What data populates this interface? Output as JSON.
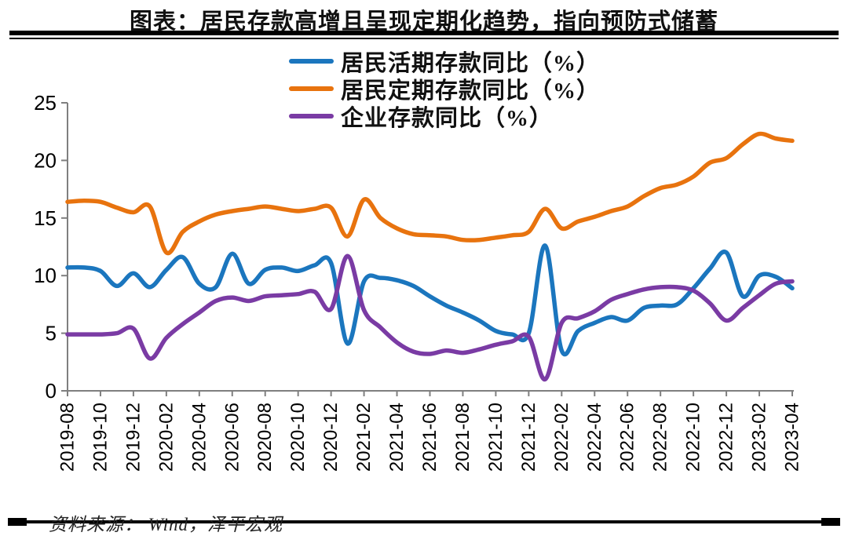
{
  "title": "图表：居民存款高增且呈现定期化趋势，指向预防式储蓄",
  "source_note": "资料来源： Wind，泽平宏观",
  "colors": {
    "blue_series": "#1B76BE",
    "orange_series": "#E8730E",
    "purple_series": "#7A3BA4",
    "axis": "#7F7F7F",
    "text": "#000000",
    "rule": "#000000"
  },
  "chart_data": {
    "type": "line",
    "title": "图表：居民存款高增且呈现定期化趋势，指向预防式储蓄",
    "xlabel": "",
    "ylabel": "",
    "ylim": [
      0,
      25
    ],
    "y_ticks": [
      0,
      5,
      10,
      15,
      20,
      25
    ],
    "grid": false,
    "legend_position": "top-center",
    "x": [
      "2019-08",
      "2019-09",
      "2019-10",
      "2019-11",
      "2019-12",
      "2020-01",
      "2020-02",
      "2020-03",
      "2020-04",
      "2020-05",
      "2020-06",
      "2020-07",
      "2020-08",
      "2020-09",
      "2020-10",
      "2020-11",
      "2020-12",
      "2021-01",
      "2021-02",
      "2021-03",
      "2021-04",
      "2021-05",
      "2021-06",
      "2021-07",
      "2021-08",
      "2021-09",
      "2021-10",
      "2021-11",
      "2021-12",
      "2022-01",
      "2022-02",
      "2022-03",
      "2022-04",
      "2022-05",
      "2022-06",
      "2022-07",
      "2022-08",
      "2022-09",
      "2022-10",
      "2022-11",
      "2022-12",
      "2023-01",
      "2023-02",
      "2023-03",
      "2023-04"
    ],
    "x_tick_labels": [
      "2019-08",
      "2019-10",
      "2019-12",
      "2020-02",
      "2020-04",
      "2020-06",
      "2020-08",
      "2020-10",
      "2020-12",
      "2021-02",
      "2021-04",
      "2021-06",
      "2021-08",
      "2021-10",
      "2021-12",
      "2022-02",
      "2022-04",
      "2022-06",
      "2022-08",
      "2022-10",
      "2022-12",
      "2023-02",
      "2023-04"
    ],
    "series": [
      {
        "name": "居民活期存款同比（%）",
        "color": "#1B76BE",
        "values": [
          10.7,
          10.7,
          10.4,
          9.1,
          10.2,
          9.0,
          10.5,
          11.6,
          9.3,
          9.0,
          11.9,
          9.3,
          10.5,
          10.7,
          10.4,
          10.9,
          11.1,
          4.1,
          9.5,
          9.8,
          9.6,
          9.1,
          8.2,
          7.4,
          6.8,
          6.1,
          5.2,
          4.9,
          5.0,
          12.6,
          3.5,
          5.2,
          5.9,
          6.4,
          6.1,
          7.2,
          7.4,
          7.5,
          8.9,
          10.6,
          12.0,
          8.2,
          10.0,
          9.9,
          8.9
        ]
      },
      {
        "name": "居民定期存款同比（%）",
        "color": "#E8730E",
        "values": [
          16.4,
          16.5,
          16.4,
          15.9,
          15.5,
          16.0,
          12.0,
          13.8,
          14.7,
          15.3,
          15.6,
          15.8,
          16.0,
          15.8,
          15.6,
          15.8,
          15.9,
          13.4,
          16.6,
          15.0,
          14.1,
          13.6,
          13.5,
          13.4,
          13.1,
          13.1,
          13.3,
          13.5,
          13.8,
          15.8,
          14.1,
          14.7,
          15.1,
          15.6,
          16.0,
          16.9,
          17.6,
          17.9,
          18.6,
          19.8,
          20.2,
          21.4,
          22.3,
          21.9,
          21.7
        ]
      },
      {
        "name": "企业存款同比（%）",
        "color": "#7A3BA4",
        "values": [
          4.9,
          4.9,
          4.9,
          5.0,
          5.4,
          2.8,
          4.6,
          5.8,
          6.8,
          7.8,
          8.1,
          7.8,
          8.2,
          8.3,
          8.4,
          8.6,
          7.1,
          11.7,
          7.0,
          5.5,
          4.2,
          3.4,
          3.2,
          3.5,
          3.3,
          3.6,
          4.0,
          4.3,
          4.7,
          1.0,
          5.9,
          6.3,
          6.9,
          7.9,
          8.4,
          8.8,
          9.0,
          9.0,
          8.7,
          7.6,
          6.1,
          7.2,
          8.3,
          9.3,
          9.5
        ]
      }
    ]
  }
}
